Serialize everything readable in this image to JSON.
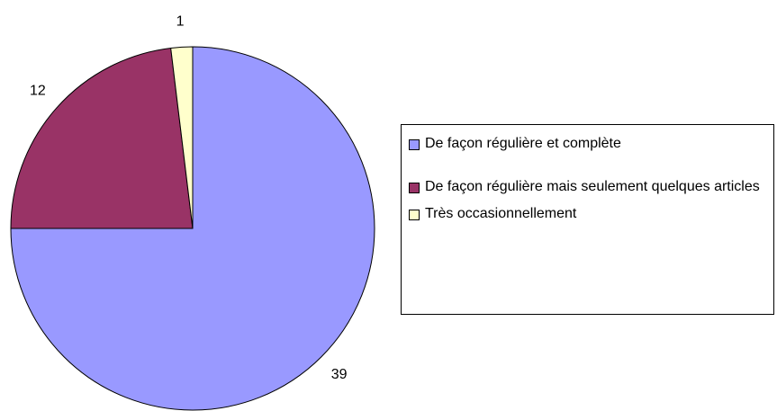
{
  "chart_data": {
    "type": "pie",
    "categories": [
      "De façon régulière et complète",
      "De façon régulière mais seulement quelques articles",
      "Très occasionnellement"
    ],
    "values": [
      39,
      12,
      1
    ],
    "colors": [
      "#9999ff",
      "#993366",
      "#ffffcc"
    ],
    "legend": "right"
  }
}
